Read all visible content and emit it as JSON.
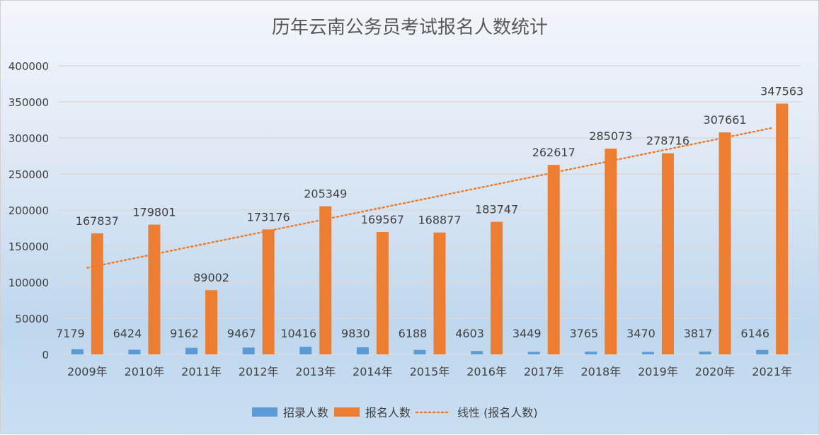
{
  "chart_data": {
    "type": "bar",
    "title": "历年云南公务员考试报名人数统计",
    "categories": [
      "2009年",
      "2010年",
      "2011年",
      "2012年",
      "2013年",
      "2014年",
      "2015年",
      "2016年",
      "2017年",
      "2018年",
      "2019年",
      "2020年",
      "2021年"
    ],
    "series": [
      {
        "name": "招录人数",
        "color": "#5b9bd5",
        "values": [
          7179,
          6424,
          9162,
          9467,
          10416,
          9830,
          6188,
          4603,
          3449,
          3765,
          3470,
          3817,
          6146
        ]
      },
      {
        "name": "报名人数",
        "color": "#ed7d31",
        "values": [
          167837,
          179801,
          89002,
          173176,
          205349,
          169567,
          168877,
          183747,
          262617,
          285073,
          278716,
          307661,
          347563
        ]
      }
    ],
    "trendline": {
      "name": "线性 (报名人数)",
      "type": "linear",
      "of_series": "报名人数",
      "color": "#ed7d31",
      "style": "dotted"
    },
    "ylim": [
      0,
      400000
    ],
    "yticks": [
      0,
      50000,
      100000,
      150000,
      200000,
      250000,
      300000,
      350000,
      400000
    ],
    "grid": true,
    "data_labels": true,
    "legend": "bottom"
  }
}
